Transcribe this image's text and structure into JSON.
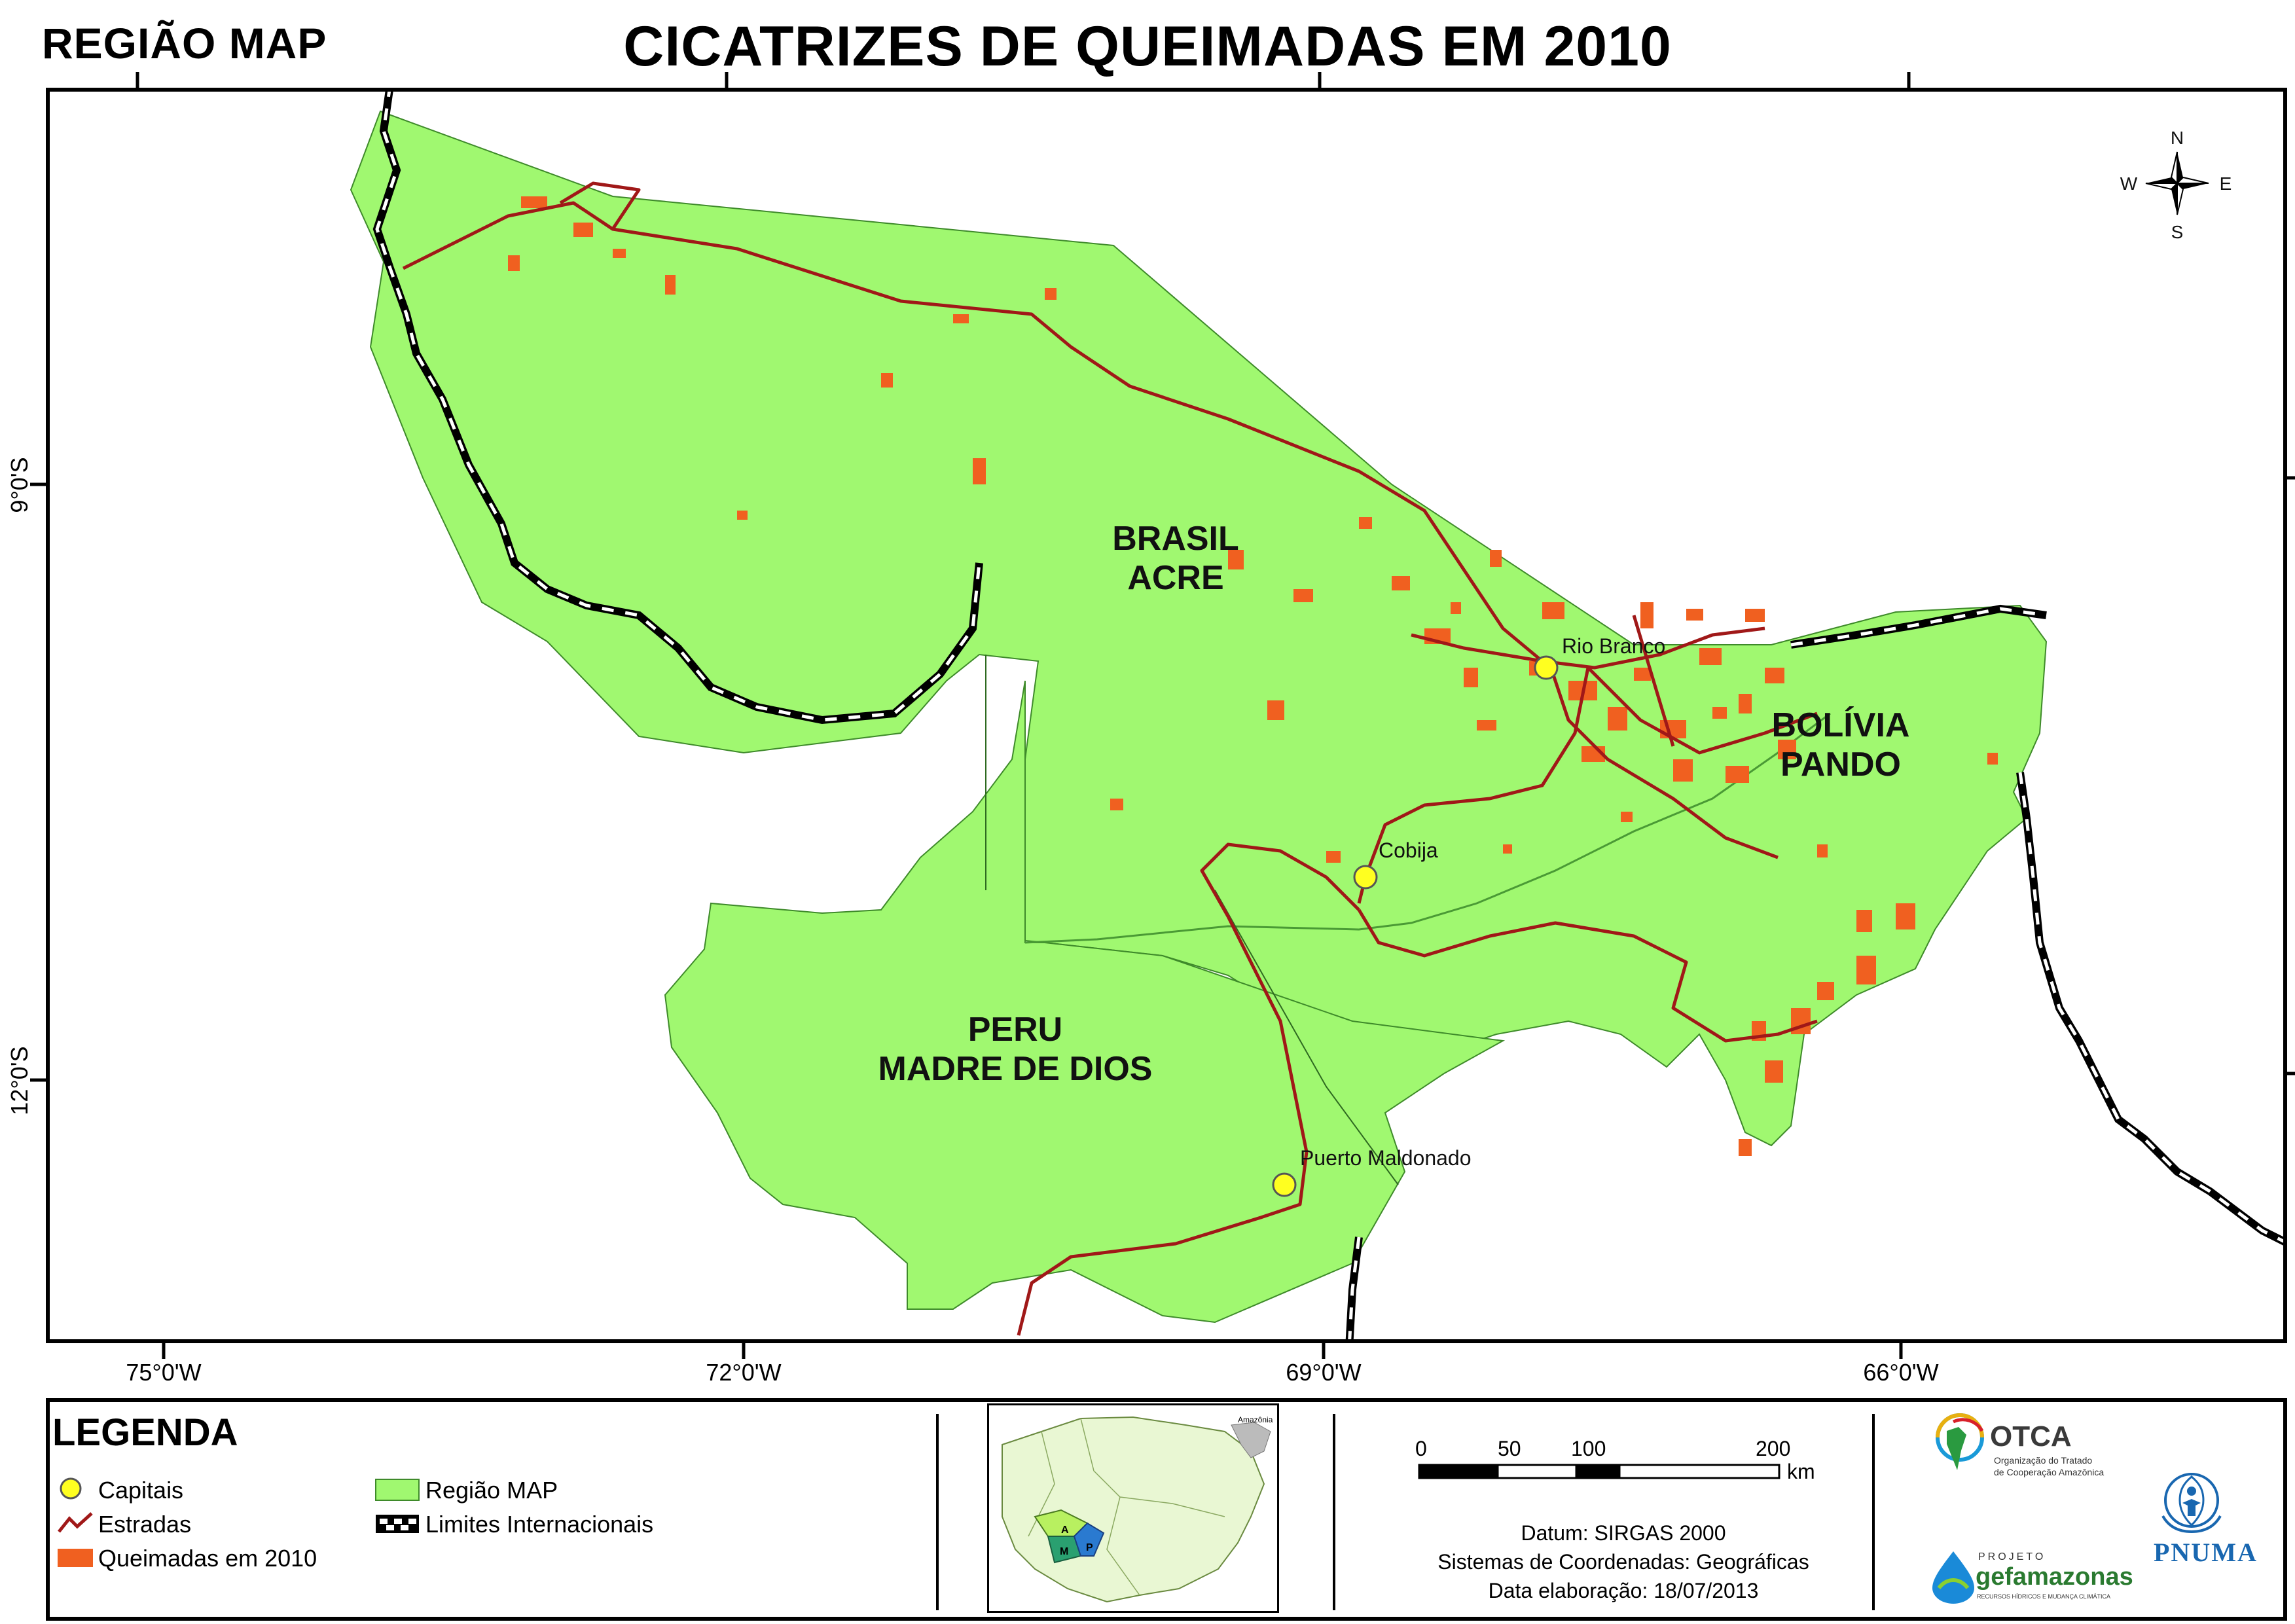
{
  "header": {
    "region_title": "REGIÃO MAP",
    "map_title": "CICATRIZES DE QUEIMADAS EM 2010"
  },
  "map": {
    "region_labels": [
      {
        "line1": "BRASIL",
        "line2": "ACRE"
      },
      {
        "line1": "BOLÍVIA",
        "line2": "PANDO"
      },
      {
        "line1": "PERU",
        "line2": "MADRE DE DIOS"
      }
    ],
    "cities": [
      "Rio Branco",
      "Cobija",
      "Puerto Maldonado"
    ],
    "compass": {
      "n": "N",
      "s": "S",
      "e": "E",
      "w": "W"
    },
    "x_ticks": [
      "75°0'W",
      "72°0'W",
      "69°0'W",
      "66°0'W"
    ],
    "y_ticks": [
      "9°0'S",
      "12°0'S"
    ],
    "colors": {
      "region": "#a0f870",
      "burn_scar": "#f06020",
      "road": "#a01818",
      "capital": "#ffff20",
      "border": "#000000"
    }
  },
  "legend": {
    "title": "LEGENDA",
    "items": {
      "capitais": "Capitais",
      "estradas": "Estradas",
      "queimadas": "Queimadas em 2010",
      "regiao": "Região MAP",
      "limites": "Limites Internacionais"
    },
    "inset": {
      "label": "Amazônia",
      "region_letters": [
        "A",
        "M",
        "P"
      ]
    },
    "scale": {
      "values": [
        "0",
        "50",
        "100",
        "200"
      ],
      "unit": "km"
    },
    "datum": "Datum: SIRGAS 2000",
    "coords": "Sistemas de Coordenadas: Geográficas",
    "date": "Data elaboração: 18/07/2013",
    "logos": {
      "otca_name": "OTCA",
      "otca_sub1": "Organização do Tratado",
      "otca_sub2": "de Cooperação Amazônica",
      "gef_projeto": "PROJETO",
      "gef_name": "gefamazonas",
      "gef_sub": "RECURSOS HÍDRICOS E MUDANÇA CLIMÁTICA",
      "pnuma": "PNUMA"
    }
  }
}
